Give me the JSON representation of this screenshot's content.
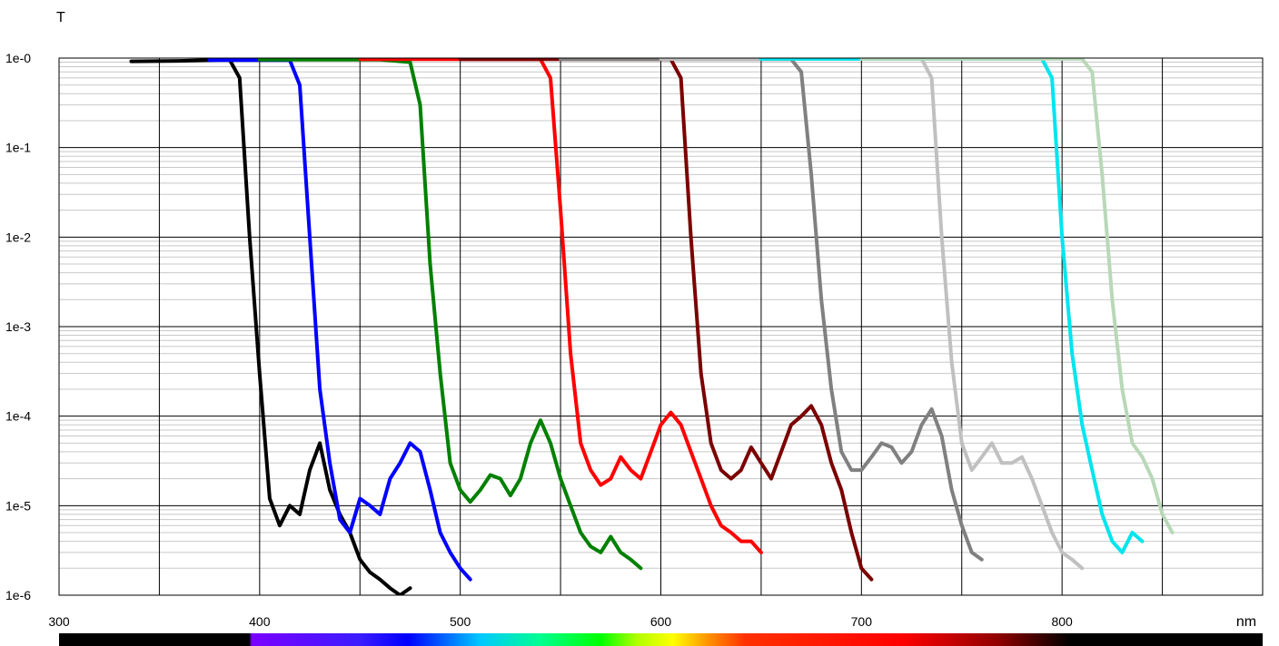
{
  "chart_data": {
    "type": "line",
    "title": "",
    "xlabel": "nm",
    "ylabel": "T",
    "x_scale": "linear",
    "y_scale": "log",
    "xlim": [
      300,
      900
    ],
    "ylim": [
      1e-06,
      1
    ],
    "x_ticks": [
      "300",
      "400",
      "500",
      "600",
      "700",
      "800"
    ],
    "y_ticks": [
      "1e-0",
      "1e-1",
      "1e-2",
      "1e-3",
      "1e-4",
      "1e-5",
      "1e-6"
    ],
    "grid": true,
    "legend": "none",
    "spectrum_bar": true,
    "series": [
      {
        "color": "#000000",
        "x": [
          336,
          360,
          385,
          390,
          395,
          400,
          405,
          410,
          415,
          420,
          425,
          430,
          435,
          440,
          445,
          450,
          455,
          460,
          465,
          470,
          475
        ],
        "y": [
          0.92,
          0.93,
          0.96,
          0.6,
          0.01,
          0.0003,
          1.2e-05,
          6e-06,
          1e-05,
          8e-06,
          2.5e-05,
          5e-05,
          1.5e-05,
          8e-06,
          5e-06,
          2.5e-06,
          1.8e-06,
          1.5e-06,
          1.2e-06,
          1e-06,
          1.2e-06
        ]
      },
      {
        "color": "#0000ff",
        "x": [
          375,
          400,
          415,
          420,
          425,
          430,
          435,
          440,
          445,
          450,
          455,
          460,
          465,
          470,
          475,
          480,
          485,
          490,
          495,
          500,
          505
        ],
        "y": [
          0.95,
          0.95,
          0.95,
          0.5,
          0.01,
          0.0002,
          3e-05,
          7e-06,
          5e-06,
          1.2e-05,
          1e-05,
          8e-06,
          2e-05,
          3e-05,
          5e-05,
          4e-05,
          1.5e-05,
          5e-06,
          3e-06,
          2e-06,
          1.5e-06
        ]
      },
      {
        "color": "#008000",
        "x": [
          400,
          460,
          475,
          480,
          485,
          490,
          495,
          500,
          505,
          510,
          515,
          520,
          525,
          530,
          535,
          540,
          545,
          550,
          555,
          560,
          565,
          570,
          575,
          580,
          585,
          590
        ],
        "y": [
          0.96,
          0.96,
          0.9,
          0.3,
          0.005,
          0.0003,
          3e-05,
          1.5e-05,
          1.1e-05,
          1.5e-05,
          2.2e-05,
          2e-05,
          1.3e-05,
          2e-05,
          5e-05,
          9e-05,
          5e-05,
          2e-05,
          1e-05,
          5e-06,
          3.5e-06,
          3e-06,
          4.5e-06,
          3e-06,
          2.5e-06,
          2e-06
        ]
      },
      {
        "color": "#ff0000",
        "x": [
          450,
          540,
          545,
          550,
          555,
          560,
          565,
          570,
          575,
          580,
          585,
          590,
          595,
          600,
          605,
          610,
          615,
          620,
          625,
          630,
          635,
          640,
          645,
          650
        ],
        "y": [
          0.97,
          0.97,
          0.6,
          0.02,
          0.0005,
          5e-05,
          2.5e-05,
          1.7e-05,
          2e-05,
          3.5e-05,
          2.5e-05,
          2e-05,
          4e-05,
          8e-05,
          0.00011,
          8e-05,
          4e-05,
          2e-05,
          1e-05,
          6e-06,
          5e-06,
          4e-06,
          4e-06,
          3e-06
        ]
      },
      {
        "color": "#7b0000",
        "x": [
          500,
          605,
          610,
          615,
          620,
          625,
          630,
          635,
          640,
          645,
          650,
          655,
          660,
          665,
          670,
          675,
          680,
          685,
          690,
          695,
          700,
          705
        ],
        "y": [
          0.97,
          0.97,
          0.6,
          0.01,
          0.0003,
          5e-05,
          2.5e-05,
          2e-05,
          2.5e-05,
          4.5e-05,
          3e-05,
          2e-05,
          4e-05,
          8e-05,
          0.0001,
          0.00013,
          8e-05,
          3e-05,
          1.5e-05,
          5e-06,
          2e-06,
          1.5e-06
        ]
      },
      {
        "color": "#808080",
        "x": [
          550,
          665,
          670,
          675,
          680,
          685,
          690,
          695,
          700,
          705,
          710,
          715,
          720,
          725,
          730,
          735,
          740,
          745,
          750,
          755,
          760
        ],
        "y": [
          0.97,
          0.97,
          0.7,
          0.05,
          0.002,
          0.0002,
          4e-05,
          2.5e-05,
          2.5e-05,
          3.5e-05,
          5e-05,
          4.5e-05,
          3e-05,
          4e-05,
          8e-05,
          0.00012,
          6e-05,
          1.5e-05,
          6e-06,
          3e-06,
          2.5e-06
        ]
      },
      {
        "color": "#c0c0c0",
        "x": [
          600,
          730,
          735,
          740,
          745,
          750,
          755,
          760,
          765,
          770,
          775,
          780,
          785,
          790,
          795,
          800,
          805,
          810
        ],
        "y": [
          0.98,
          0.98,
          0.6,
          0.01,
          0.0004,
          5e-05,
          2.5e-05,
          3.5e-05,
          5e-05,
          3e-05,
          3e-05,
          3.5e-05,
          2e-05,
          1e-05,
          5e-06,
          3e-06,
          2.5e-06,
          2e-06
        ]
      },
      {
        "color": "#00e5ee",
        "x": [
          650,
          790,
          795,
          800,
          805,
          810,
          815,
          820,
          825,
          830,
          835,
          840
        ],
        "y": [
          0.98,
          0.98,
          0.6,
          0.01,
          0.0005,
          8e-05,
          2.5e-05,
          8e-06,
          4e-06,
          3e-06,
          5e-06,
          4e-06
        ]
      },
      {
        "color": "#b8d8b8",
        "x": [
          700,
          810,
          815,
          820,
          825,
          830,
          835,
          840,
          845,
          850,
          855
        ],
        "y": [
          0.98,
          0.98,
          0.7,
          0.05,
          0.002,
          0.0002,
          5e-05,
          3.5e-05,
          2e-05,
          8e-06,
          5e-06
        ]
      }
    ]
  }
}
